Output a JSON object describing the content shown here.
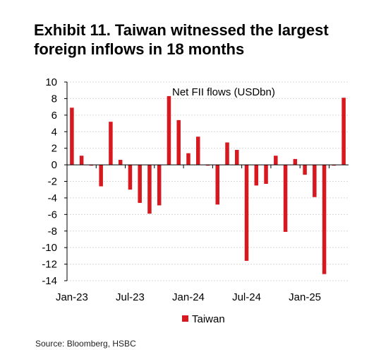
{
  "title": {
    "line1": "Exhibit 11. Taiwan witnessed the largest",
    "line2": "foreign inflows in 18 months"
  },
  "source": "Source: Bloomberg, HSBC",
  "chart_data": {
    "type": "bar",
    "annotation": "Net FII flows (USDbn)",
    "categories": [
      "Jan-23",
      "Feb-23",
      "Mar-23",
      "Apr-23",
      "May-23",
      "Jun-23",
      "Jul-23",
      "Aug-23",
      "Sep-23",
      "Oct-23",
      "Nov-23",
      "Dec-23",
      "Jan-24",
      "Feb-24",
      "Mar-24",
      "Apr-24",
      "May-24",
      "Jun-24",
      "Jul-24",
      "Aug-24",
      "Sep-24",
      "Oct-24",
      "Nov-24",
      "Dec-24",
      "Jan-25",
      "Feb-25",
      "Mar-25",
      "Apr-25",
      "May-25"
    ],
    "x_tick_labels": [
      "Jan-23",
      "Jul-23",
      "Jan-24",
      "Jul-24",
      "Jan-25"
    ],
    "series": [
      {
        "name": "Taiwan",
        "color": "#d7191f",
        "values": [
          6.9,
          1.1,
          -0.1,
          -2.6,
          5.2,
          0.6,
          -3.0,
          -4.6,
          -5.9,
          -4.9,
          8.3,
          5.4,
          1.4,
          3.4,
          -0.1,
          -4.8,
          2.7,
          1.8,
          -11.6,
          -2.5,
          -2.3,
          1.1,
          -8.1,
          0.7,
          -1.2,
          -3.9,
          -13.2,
          -0.1,
          8.1
        ]
      }
    ],
    "ylim": [
      -14,
      10
    ],
    "y_ticks": [
      10,
      8,
      6,
      4,
      2,
      0,
      -2,
      -4,
      -6,
      -8,
      -10,
      -12,
      -14
    ],
    "grid": true,
    "legend": "bottom-center",
    "xlabel": "",
    "ylabel": ""
  }
}
